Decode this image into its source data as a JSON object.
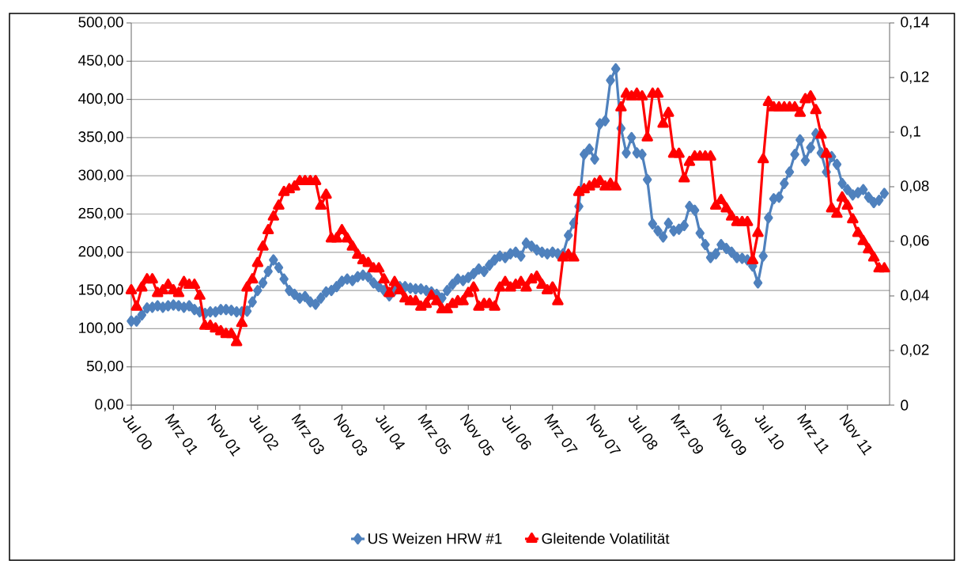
{
  "chart_data": {
    "type": "line",
    "categories": [
      "Jul 00",
      null,
      null,
      null,
      null,
      null,
      null,
      null,
      "Mrz 01",
      null,
      null,
      null,
      null,
      null,
      null,
      null,
      "Nov 01",
      null,
      null,
      null,
      null,
      null,
      null,
      null,
      "Jul 02",
      null,
      null,
      null,
      null,
      null,
      null,
      null,
      "Mrz 03",
      null,
      null,
      null,
      null,
      null,
      null,
      null,
      "Nov 03",
      null,
      null,
      null,
      null,
      null,
      null,
      null,
      "Jul 04",
      null,
      null,
      null,
      null,
      null,
      null,
      null,
      "Mrz 05",
      null,
      null,
      null,
      null,
      null,
      null,
      null,
      "Nov 05",
      null,
      null,
      null,
      null,
      null,
      null,
      null,
      "Jul 06",
      null,
      null,
      null,
      null,
      null,
      null,
      null,
      "Mrz 07",
      null,
      null,
      null,
      null,
      null,
      null,
      null,
      "Nov 07",
      null,
      null,
      null,
      null,
      null,
      null,
      null,
      "Jul 08",
      null,
      null,
      null,
      null,
      null,
      null,
      null,
      "Mrz 09",
      null,
      null,
      null,
      null,
      null,
      null,
      null,
      "Nov 09",
      null,
      null,
      null,
      null,
      null,
      null,
      null,
      "Jul 10",
      null,
      null,
      null,
      null,
      null,
      null,
      null,
      "Mrz 11",
      null,
      null,
      null,
      null,
      null,
      null,
      null,
      "Nov 11",
      null,
      null,
      null,
      null,
      null,
      null,
      null
    ],
    "series": [
      {
        "name": "US Weizen HRW #1",
        "color": "#4f81bd",
        "marker": "diamond",
        "values": [
          110,
          110,
          118,
          127,
          128,
          130,
          128,
          130,
          131,
          130,
          128,
          130,
          125,
          122,
          120,
          122,
          122,
          125,
          125,
          124,
          122,
          122,
          123,
          135,
          150,
          160,
          175,
          190,
          180,
          165,
          150,
          145,
          140,
          142,
          135,
          132,
          140,
          148,
          150,
          155,
          162,
          165,
          163,
          168,
          170,
          168,
          160,
          155,
          150,
          143,
          150,
          155,
          155,
          153,
          152,
          152,
          150,
          148,
          145,
          140,
          150,
          158,
          165,
          163,
          167,
          172,
          178,
          175,
          183,
          190,
          195,
          193,
          198,
          200,
          195,
          212,
          208,
          203,
          200,
          198,
          200,
          198,
          198,
          222,
          238,
          260,
          328,
          335,
          322,
          368,
          372,
          425,
          440,
          362,
          330,
          350,
          330,
          328,
          295,
          237,
          228,
          220,
          238,
          228,
          230,
          235,
          260,
          255,
          225,
          210,
          193,
          198,
          210,
          205,
          200,
          193,
          192,
          190,
          182,
          160,
          195,
          245,
          270,
          272,
          290,
          305,
          328,
          347,
          320,
          337,
          355,
          330,
          305,
          325,
          315,
          290,
          282,
          275,
          278,
          282,
          272,
          265,
          268,
          277
        ]
      },
      {
        "name": "Gleitende Volatilität",
        "color": "#ff0000",
        "marker": "triangle",
        "axis": "y2",
        "values": [
          0.042,
          0.036,
          0.043,
          0.046,
          0.046,
          0.041,
          0.042,
          0.044,
          0.042,
          0.041,
          0.045,
          0.044,
          0.044,
          0.04,
          0.029,
          0.029,
          0.028,
          0.027,
          0.026,
          0.026,
          0.023,
          0.03,
          0.043,
          0.046,
          0.052,
          0.058,
          0.064,
          0.069,
          0.073,
          0.078,
          0.079,
          0.08,
          0.082,
          0.082,
          0.082,
          0.082,
          0.073,
          0.077,
          0.061,
          0.061,
          0.064,
          0.061,
          0.058,
          0.055,
          0.053,
          0.052,
          0.05,
          0.05,
          0.046,
          0.041,
          0.045,
          0.042,
          0.039,
          0.038,
          0.038,
          0.036,
          0.037,
          0.04,
          0.038,
          0.035,
          0.035,
          0.037,
          0.038,
          0.038,
          0.041,
          0.043,
          0.036,
          0.037,
          0.037,
          0.036,
          0.043,
          0.045,
          0.043,
          0.044,
          0.045,
          0.043,
          0.046,
          0.047,
          0.044,
          0.042,
          0.043,
          0.038,
          0.054,
          0.055,
          0.054,
          0.078,
          0.079,
          0.08,
          0.081,
          0.082,
          0.08,
          0.081,
          0.08,
          0.109,
          0.114,
          0.113,
          0.114,
          0.113,
          0.098,
          0.114,
          0.114,
          0.103,
          0.107,
          0.092,
          0.092,
          0.083,
          0.089,
          0.091,
          0.091,
          0.091,
          0.091,
          0.073,
          0.075,
          0.072,
          0.069,
          0.067,
          0.067,
          0.067,
          0.053,
          0.063,
          0.09,
          0.111,
          0.109,
          0.109,
          0.109,
          0.109,
          0.109,
          0.107,
          0.112,
          0.113,
          0.108,
          0.099,
          0.092,
          0.072,
          0.07,
          0.076,
          0.073,
          0.068,
          0.063,
          0.06,
          0.057,
          0.054,
          0.05,
          0.05
        ]
      }
    ],
    "ylim": [
      0,
      500
    ],
    "yticks": [
      {
        "value": 0,
        "label": "0,00"
      },
      {
        "value": 50,
        "label": "50,00"
      },
      {
        "value": 100,
        "label": "100,00"
      },
      {
        "value": 150,
        "label": "150,00"
      },
      {
        "value": 200,
        "label": "200,00"
      },
      {
        "value": 250,
        "label": "250,00"
      },
      {
        "value": 300,
        "label": "300,00"
      },
      {
        "value": 350,
        "label": "350,00"
      },
      {
        "value": 400,
        "label": "400,00"
      },
      {
        "value": 450,
        "label": "450,00"
      },
      {
        "value": 500,
        "label": "500,00"
      }
    ],
    "y2lim": [
      0,
      0.14
    ],
    "y2ticks": [
      0,
      {
        "value": 0.02,
        "label": "0,02"
      },
      {
        "value": 0.04,
        "label": "0,04"
      },
      {
        "value": 0.06,
        "label": "0,06"
      },
      {
        "value": 0.08,
        "label": "0,08"
      },
      {
        "value": 0.1,
        "label": "0,1"
      },
      {
        "value": 0.12,
        "label": "0,12"
      },
      {
        "value": 0.14,
        "label": "0,14"
      }
    ],
    "grid": "y",
    "legend": "bottom",
    "line_style": "solid"
  }
}
